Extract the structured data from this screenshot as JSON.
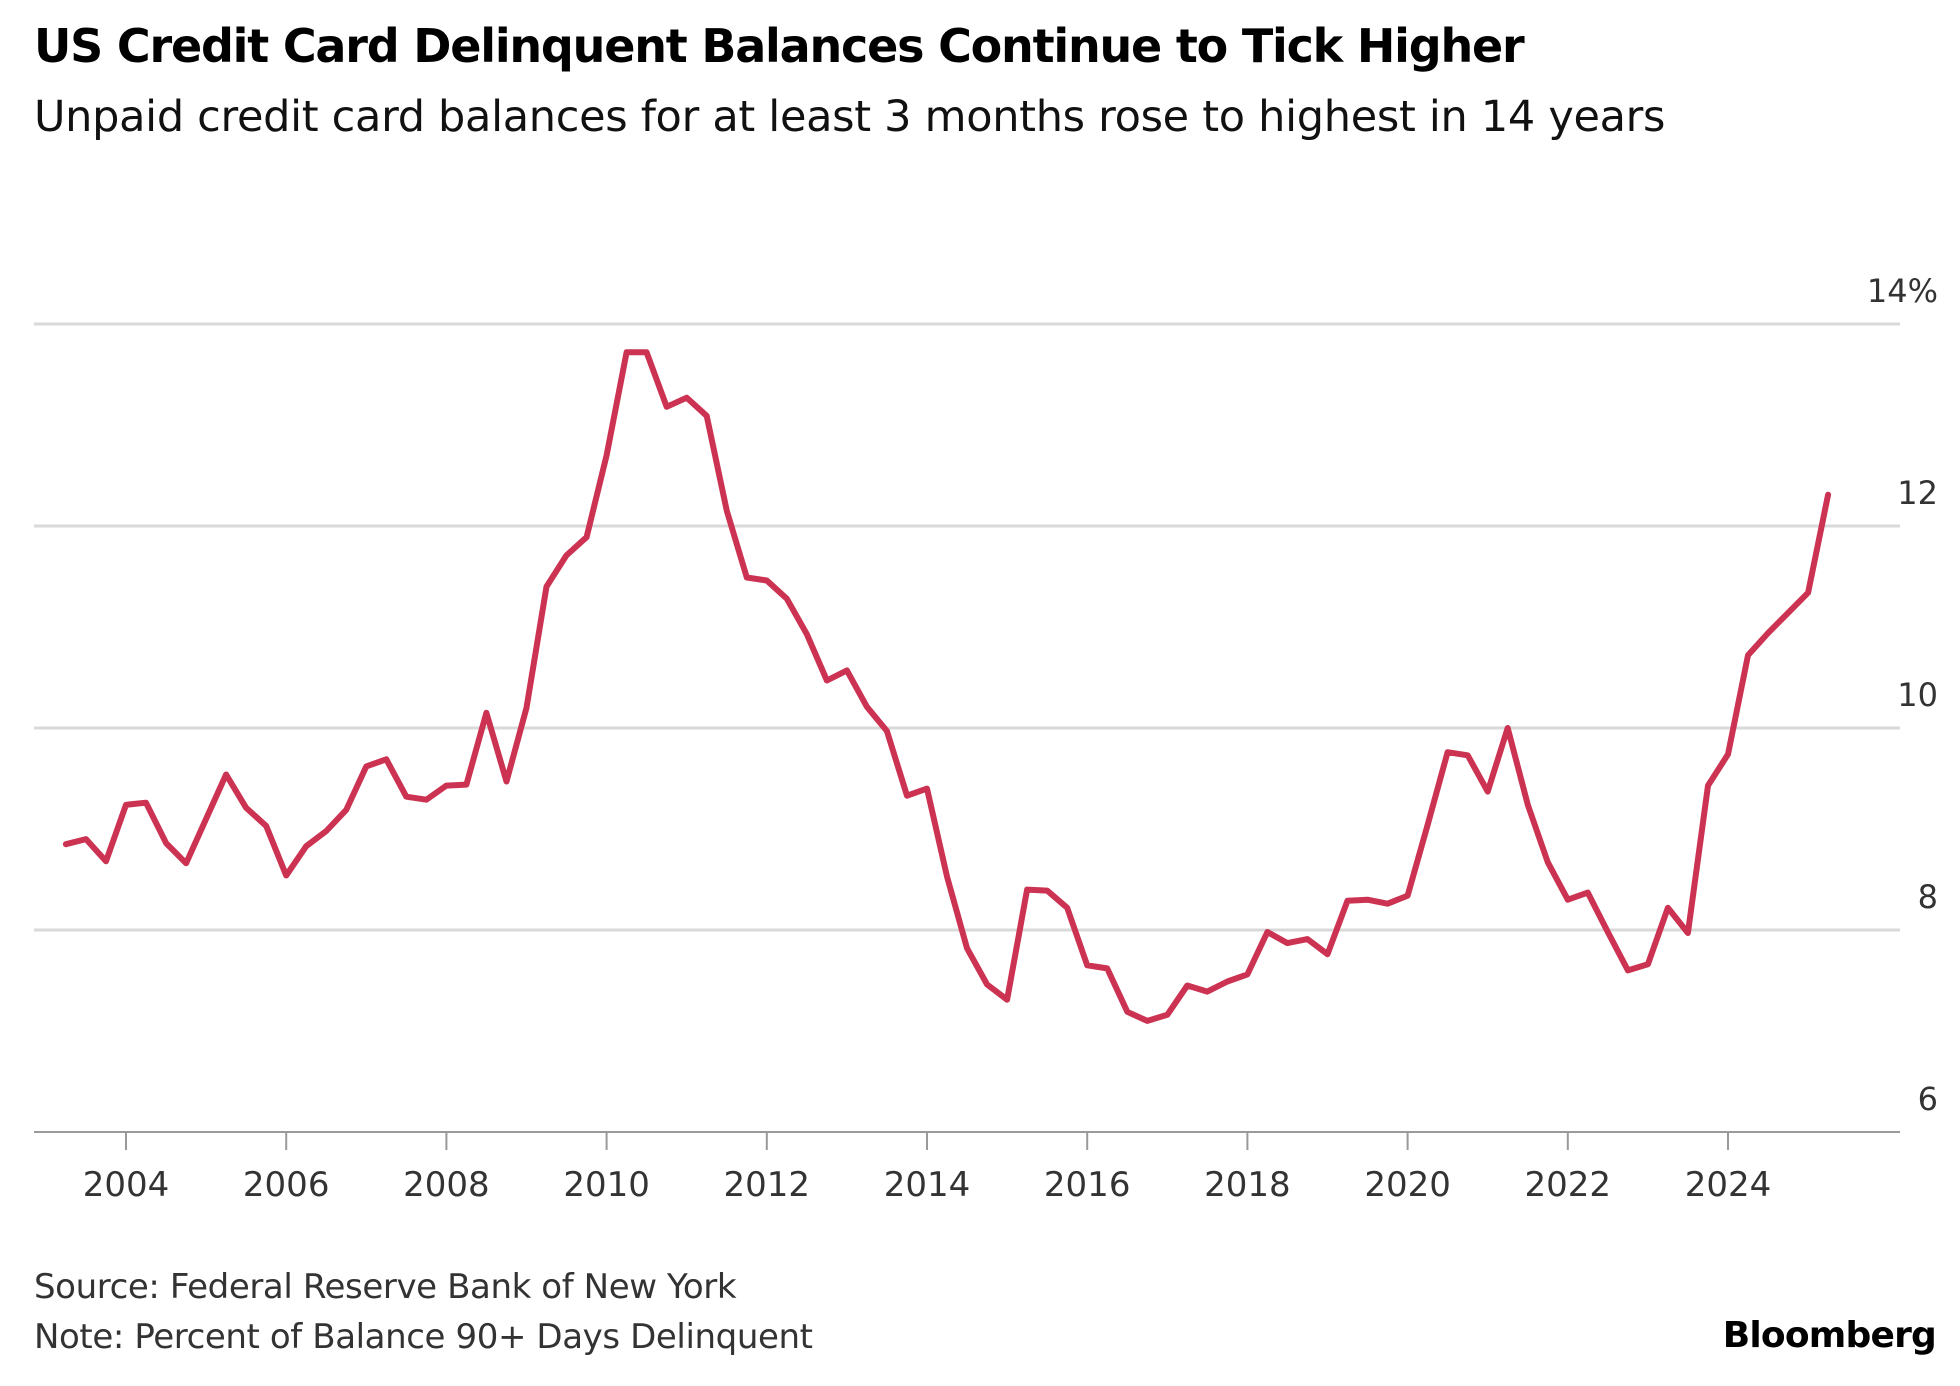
{
  "chart_data": {
    "type": "line",
    "title": "US Credit Card Delinquent Balances Continue to Tick Higher",
    "subtitle": "Unpaid credit card balances for at least 3 months rose to highest in 14 years",
    "xlabel": "",
    "ylabel": "Percent of Balance 90+ Days Delinquent",
    "xlim": [
      2003.0,
      2025.75
    ],
    "ylim": [
      6,
      14
    ],
    "x_ticks": [
      2004,
      2006,
      2008,
      2010,
      2012,
      2014,
      2016,
      2018,
      2020,
      2022,
      2024
    ],
    "x_tick_labels": [
      "2004",
      "2006",
      "2008",
      "2010",
      "2012",
      "2014",
      "2016",
      "2018",
      "2020",
      "2022",
      "2024"
    ],
    "y_ticks": [
      6,
      8,
      10,
      12,
      14
    ],
    "y_tick_labels": [
      "6",
      "8",
      "10",
      "12",
      "14%"
    ],
    "grid": true,
    "series": [
      {
        "name": "Percent of Balance 90+ Days Delinquent",
        "color": "#cc3352",
        "x": [
          2003.25,
          2003.5,
          2003.75,
          2004.0,
          2004.25,
          2004.5,
          2004.75,
          2005.0,
          2005.25,
          2005.5,
          2005.75,
          2006.0,
          2006.25,
          2006.5,
          2006.75,
          2007.0,
          2007.25,
          2007.5,
          2007.75,
          2008.0,
          2008.25,
          2008.5,
          2008.75,
          2009.0,
          2009.25,
          2009.5,
          2009.75,
          2010.0,
          2010.25,
          2010.5,
          2010.75,
          2011.0,
          2011.25,
          2011.5,
          2011.75,
          2012.0,
          2012.25,
          2012.5,
          2012.75,
          2013.0,
          2013.25,
          2013.5,
          2013.75,
          2014.0,
          2014.25,
          2014.5,
          2014.75,
          2015.0,
          2015.25,
          2015.5,
          2015.75,
          2016.0,
          2016.25,
          2016.5,
          2016.75,
          2017.0,
          2017.25,
          2017.5,
          2017.75,
          2018.0,
          2018.25,
          2018.5,
          2018.75,
          2019.0,
          2019.25,
          2019.5,
          2019.75,
          2020.0,
          2020.25,
          2020.5,
          2020.75,
          2021.0,
          2021.25,
          2021.5,
          2021.75,
          2022.0,
          2022.25,
          2022.5,
          2022.75,
          2023.0,
          2023.25,
          2023.5,
          2023.75,
          2024.0,
          2024.25,
          2024.5,
          2024.75,
          2025.0,
          2025.25
        ],
        "values": [
          8.85,
          8.9,
          8.68,
          9.24,
          9.26,
          8.86,
          8.66,
          9.1,
          9.54,
          9.21,
          9.03,
          8.54,
          8.83,
          8.98,
          9.19,
          9.62,
          9.69,
          9.32,
          9.29,
          9.43,
          9.44,
          10.15,
          9.47,
          10.2,
          11.4,
          11.71,
          11.89,
          12.7,
          13.72,
          13.72,
          13.18,
          13.27,
          13.09,
          12.15,
          11.49,
          11.46,
          11.28,
          10.93,
          10.47,
          10.57,
          10.21,
          9.97,
          9.33,
          9.4,
          8.53,
          7.82,
          7.46,
          7.31,
          8.4,
          8.39,
          8.22,
          7.65,
          7.62,
          7.19,
          7.1,
          7.16,
          7.45,
          7.39,
          7.49,
          7.56,
          7.98,
          7.87,
          7.91,
          7.76,
          8.29,
          8.3,
          8.26,
          8.34,
          9.04,
          9.76,
          9.73,
          9.37,
          10.0,
          9.24,
          8.67,
          8.3,
          8.37,
          7.98,
          7.6,
          7.66,
          8.22,
          7.97,
          9.43,
          9.74,
          10.72,
          10.94,
          11.14,
          11.34,
          12.31
        ]
      }
    ]
  },
  "footer": {
    "source": "Source: Federal Reserve Bank of New York",
    "note": "Note: Percent of Balance 90+ Days Delinquent"
  },
  "brand": "Bloomberg"
}
